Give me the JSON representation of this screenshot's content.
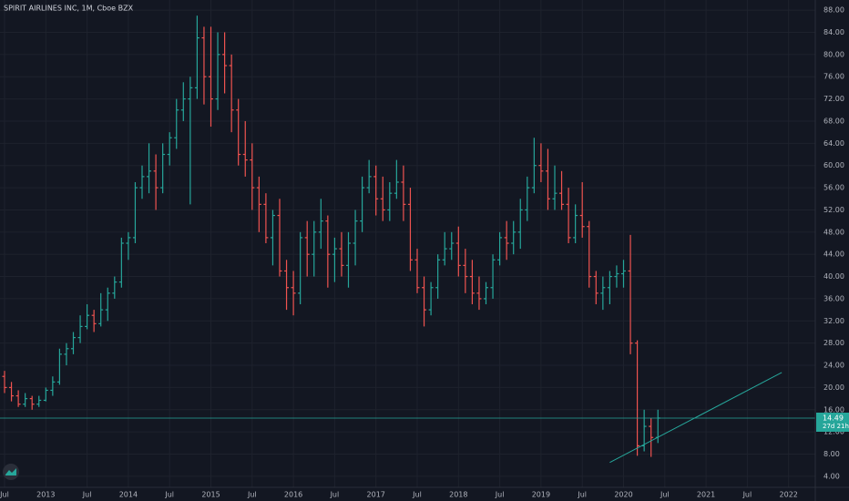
{
  "chart_data": {
    "type": "ohlc",
    "title": "SPIRIT AIRLINES INC, 1M, Cboe BZX",
    "x": [
      "2012-07",
      "2012-08",
      "2012-09",
      "2012-10",
      "2012-11",
      "2012-12",
      "2013-01",
      "2013-02",
      "2013-03",
      "2013-04",
      "2013-05",
      "2013-06",
      "2013-07",
      "2013-08",
      "2013-09",
      "2013-10",
      "2013-11",
      "2013-12",
      "2014-01",
      "2014-02",
      "2014-03",
      "2014-04",
      "2014-05",
      "2014-06",
      "2014-07",
      "2014-08",
      "2014-09",
      "2014-10",
      "2014-11",
      "2014-12",
      "2015-01",
      "2015-02",
      "2015-03",
      "2015-04",
      "2015-05",
      "2015-06",
      "2015-07",
      "2015-08",
      "2015-09",
      "2015-10",
      "2015-11",
      "2015-12",
      "2016-01",
      "2016-02",
      "2016-03",
      "2016-04",
      "2016-05",
      "2016-06",
      "2016-07",
      "2016-08",
      "2016-09",
      "2016-10",
      "2016-11",
      "2016-12",
      "2017-01",
      "2017-02",
      "2017-03",
      "2017-04",
      "2017-05",
      "2017-06",
      "2017-07",
      "2017-08",
      "2017-09",
      "2017-10",
      "2017-11",
      "2017-12",
      "2018-01",
      "2018-02",
      "2018-03",
      "2018-04",
      "2018-05",
      "2018-06",
      "2018-07",
      "2018-08",
      "2018-09",
      "2018-10",
      "2018-11",
      "2018-12",
      "2019-01",
      "2019-02",
      "2019-03",
      "2019-04",
      "2019-05",
      "2019-06",
      "2019-07",
      "2019-08",
      "2019-09",
      "2019-10",
      "2019-11",
      "2019-12",
      "2020-01",
      "2020-02",
      "2020-03",
      "2020-04",
      "2020-05",
      "2020-06"
    ],
    "ohlc": {
      "open": [
        22,
        20,
        18.5,
        17,
        18,
        17,
        17.7,
        19.5,
        21,
        26,
        27,
        29,
        31,
        33,
        31.5,
        34,
        37,
        39,
        46,
        47,
        56,
        58,
        59,
        56,
        62,
        65,
        70,
        72,
        74,
        83,
        76,
        72,
        80,
        78,
        70,
        62,
        61,
        56,
        53,
        47,
        51,
        41,
        38,
        37,
        47,
        44,
        48,
        50,
        44,
        45,
        42,
        46,
        50,
        56,
        58,
        54,
        52,
        55,
        57,
        53,
        43,
        38,
        34,
        38,
        43,
        45,
        46,
        42,
        40,
        37,
        36,
        38,
        43,
        47,
        46,
        48,
        52,
        56,
        60,
        59,
        54,
        55,
        53,
        47,
        51,
        49,
        40,
        37,
        38,
        40,
        40.5,
        41,
        28,
        9.5,
        13,
        11
      ],
      "high": [
        23,
        21,
        19.5,
        19,
        18.5,
        18.5,
        20,
        22,
        27,
        28,
        30,
        33,
        35,
        34,
        37,
        38,
        40,
        47,
        48,
        57,
        60,
        64,
        62,
        64,
        66,
        72,
        75,
        76,
        87,
        85,
        85,
        84,
        84,
        80,
        72,
        68,
        64,
        58,
        55,
        52,
        54,
        43,
        41,
        48,
        50,
        50,
        54,
        51,
        47,
        48,
        48,
        52,
        58,
        61,
        60,
        58,
        57,
        61,
        60,
        56,
        45,
        40,
        39,
        44,
        48,
        48,
        49,
        45,
        43,
        40,
        39,
        44,
        48,
        50,
        50,
        54,
        58,
        65,
        64,
        63,
        60,
        59,
        56,
        53,
        57,
        50,
        41,
        40,
        41,
        42,
        43,
        47.5,
        28.5,
        16,
        14.5,
        16
      ],
      "low": [
        19,
        17.5,
        16.5,
        16.5,
        16,
        16.5,
        17.5,
        18.5,
        20.5,
        24,
        26,
        28,
        30.5,
        30,
        31,
        32,
        36,
        38,
        43,
        46,
        54,
        55,
        52,
        55,
        60,
        63,
        68,
        53,
        72,
        71,
        67,
        70,
        73,
        66,
        60,
        58,
        52,
        48,
        46,
        42,
        40,
        34,
        33,
        35,
        40,
        40,
        45,
        38,
        39,
        40,
        38,
        42,
        48,
        55,
        51,
        50,
        50,
        54,
        50,
        41,
        37,
        31,
        33,
        36,
        42,
        43,
        40,
        37,
        35,
        34,
        35,
        36,
        42,
        43,
        44,
        45,
        50,
        55,
        57,
        52,
        52,
        52,
        46,
        46,
        47,
        38,
        35,
        34,
        35,
        38,
        38,
        26,
        7.7,
        8.5,
        7.5,
        10
      ],
      "close": [
        20,
        18.5,
        17,
        18,
        17,
        17.7,
        19.5,
        21,
        26,
        27,
        29,
        31,
        33,
        31.5,
        34,
        37,
        39,
        46,
        47,
        56,
        58,
        59,
        56,
        62,
        65,
        70,
        72,
        74,
        83,
        76,
        72,
        80,
        78,
        70,
        62,
        61,
        56,
        53,
        47,
        51,
        41,
        38,
        37,
        47,
        44,
        48,
        50,
        44,
        45,
        42,
        46,
        50,
        56,
        58,
        54,
        52,
        55,
        57,
        53,
        43,
        38,
        34,
        38,
        43,
        45,
        46,
        42,
        40,
        37,
        36,
        38,
        43,
        47,
        46,
        48,
        52,
        56,
        60,
        59,
        54,
        55,
        53,
        47,
        51,
        49,
        40,
        37,
        38,
        40,
        40.5,
        41,
        28,
        9.5,
        13,
        11,
        14.49
      ]
    },
    "up_color": "#26a69a",
    "down_color": "#ef5350",
    "ylim": [
      3,
      89
    ],
    "yticks": [
      {
        "value": 4,
        "label": "4.00"
      },
      {
        "value": 8,
        "label": "8.00"
      },
      {
        "value": 12,
        "label": "12.00"
      },
      {
        "value": 16,
        "label": "16.00"
      },
      {
        "value": 20,
        "label": "20.00"
      },
      {
        "value": 24,
        "label": "24.00"
      },
      {
        "value": 28,
        "label": "28.00"
      },
      {
        "value": 32,
        "label": "32.00"
      },
      {
        "value": 36,
        "label": "36.00"
      },
      {
        "value": 40,
        "label": "40.00"
      },
      {
        "value": 44,
        "label": "44.00"
      },
      {
        "value": 48,
        "label": "48.00"
      },
      {
        "value": 52,
        "label": "52.00"
      },
      {
        "value": 56,
        "label": "56.00"
      },
      {
        "value": 60,
        "label": "60.00"
      },
      {
        "value": 64,
        "label": "64.00"
      },
      {
        "value": 68,
        "label": "68.00"
      },
      {
        "value": 72,
        "label": "72.00"
      },
      {
        "value": 76,
        "label": "76.00"
      },
      {
        "value": 80,
        "label": "80.00"
      },
      {
        "value": 84,
        "label": "84.00"
      },
      {
        "value": 88,
        "label": "88.00"
      }
    ],
    "xticks": [
      {
        "value": "2012-07",
        "label": "Jul"
      },
      {
        "value": "2013-01",
        "label": "2013"
      },
      {
        "value": "2013-07",
        "label": "Jul"
      },
      {
        "value": "2014-01",
        "label": "2014"
      },
      {
        "value": "2014-07",
        "label": "Jul"
      },
      {
        "value": "2015-01",
        "label": "2015"
      },
      {
        "value": "2015-07",
        "label": "Jul"
      },
      {
        "value": "2016-01",
        "label": "2016"
      },
      {
        "value": "2016-07",
        "label": "Jul"
      },
      {
        "value": "2017-01",
        "label": "2017"
      },
      {
        "value": "2017-07",
        "label": "Jul"
      },
      {
        "value": "2018-01",
        "label": "2018"
      },
      {
        "value": "2018-07",
        "label": "Jul"
      },
      {
        "value": "2019-01",
        "label": "2019"
      },
      {
        "value": "2019-07",
        "label": "Jul"
      },
      {
        "value": "2020-01",
        "label": "2020"
      },
      {
        "value": "2020-07",
        "label": "Jul"
      },
      {
        "value": "2021-01",
        "label": "2021"
      },
      {
        "value": "2021-07",
        "label": "Jul"
      },
      {
        "value": "2022-01",
        "label": "2022"
      }
    ],
    "grid": true,
    "countdown": "27d 21h",
    "trendline": {
      "x": [
        "2019-11",
        "2021-12"
      ],
      "y": [
        6.5,
        22.7
      ],
      "color": "#26a69a"
    }
  }
}
